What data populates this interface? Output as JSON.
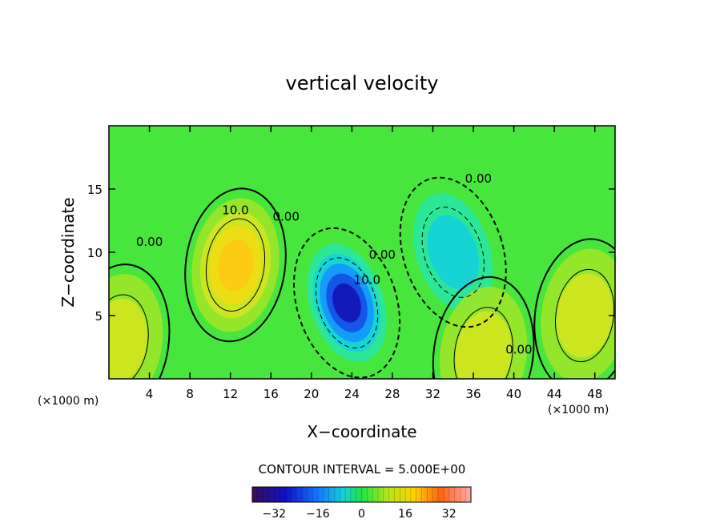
{
  "chart_data": {
    "type": "heatmap",
    "subtype": "filled-contour",
    "title": "vertical velocity",
    "xlabel": "X−coordinate",
    "ylabel": "Z−coordinate",
    "x_unit_left": "(×1000 m)",
    "x_unit_right": "(×1000 m)",
    "xlim": [
      0,
      50
    ],
    "ylim": [
      0,
      20
    ],
    "xticks": [
      4,
      8,
      12,
      16,
      20,
      24,
      28,
      32,
      36,
      40,
      44,
      48
    ],
    "xtick_labels": [
      "4",
      "8",
      "12",
      "16",
      "20",
      "24",
      "28",
      "32",
      "36",
      "40",
      "44",
      "48"
    ],
    "yticks": [
      5,
      10,
      15
    ],
    "ytick_labels": [
      "5",
      "10",
      "15"
    ],
    "contour_interval_text": "CONTOUR INTERVAL = 5.000E+00",
    "contour_interval": 5,
    "colorbar": {
      "range": [
        -40,
        40
      ],
      "ticks": [
        -32,
        -16,
        0,
        16,
        32
      ],
      "tick_labels": [
        "−32",
        "−16",
        "0",
        "16",
        "32"
      ]
    },
    "contour_labels": [
      "10.0",
      "0.00",
      "0.00",
      "0.00",
      "10.0",
      "0.00",
      "0.00"
    ],
    "features": [
      {
        "kind": "updraft",
        "x": 12.5,
        "z": 9,
        "peak": 14
      },
      {
        "kind": "downdraft",
        "x": 23.5,
        "z": 6,
        "peak": -18
      },
      {
        "kind": "downdraft",
        "x": 34,
        "z": 10,
        "peak": -8
      },
      {
        "kind": "updraft",
        "x": 37,
        "z": 2,
        "peak": 8
      },
      {
        "kind": "updraft",
        "x": 1,
        "z": 3,
        "peak": 6
      },
      {
        "kind": "updraft",
        "x": 47,
        "z": 5,
        "peak": 6
      }
    ],
    "grid": false
  }
}
